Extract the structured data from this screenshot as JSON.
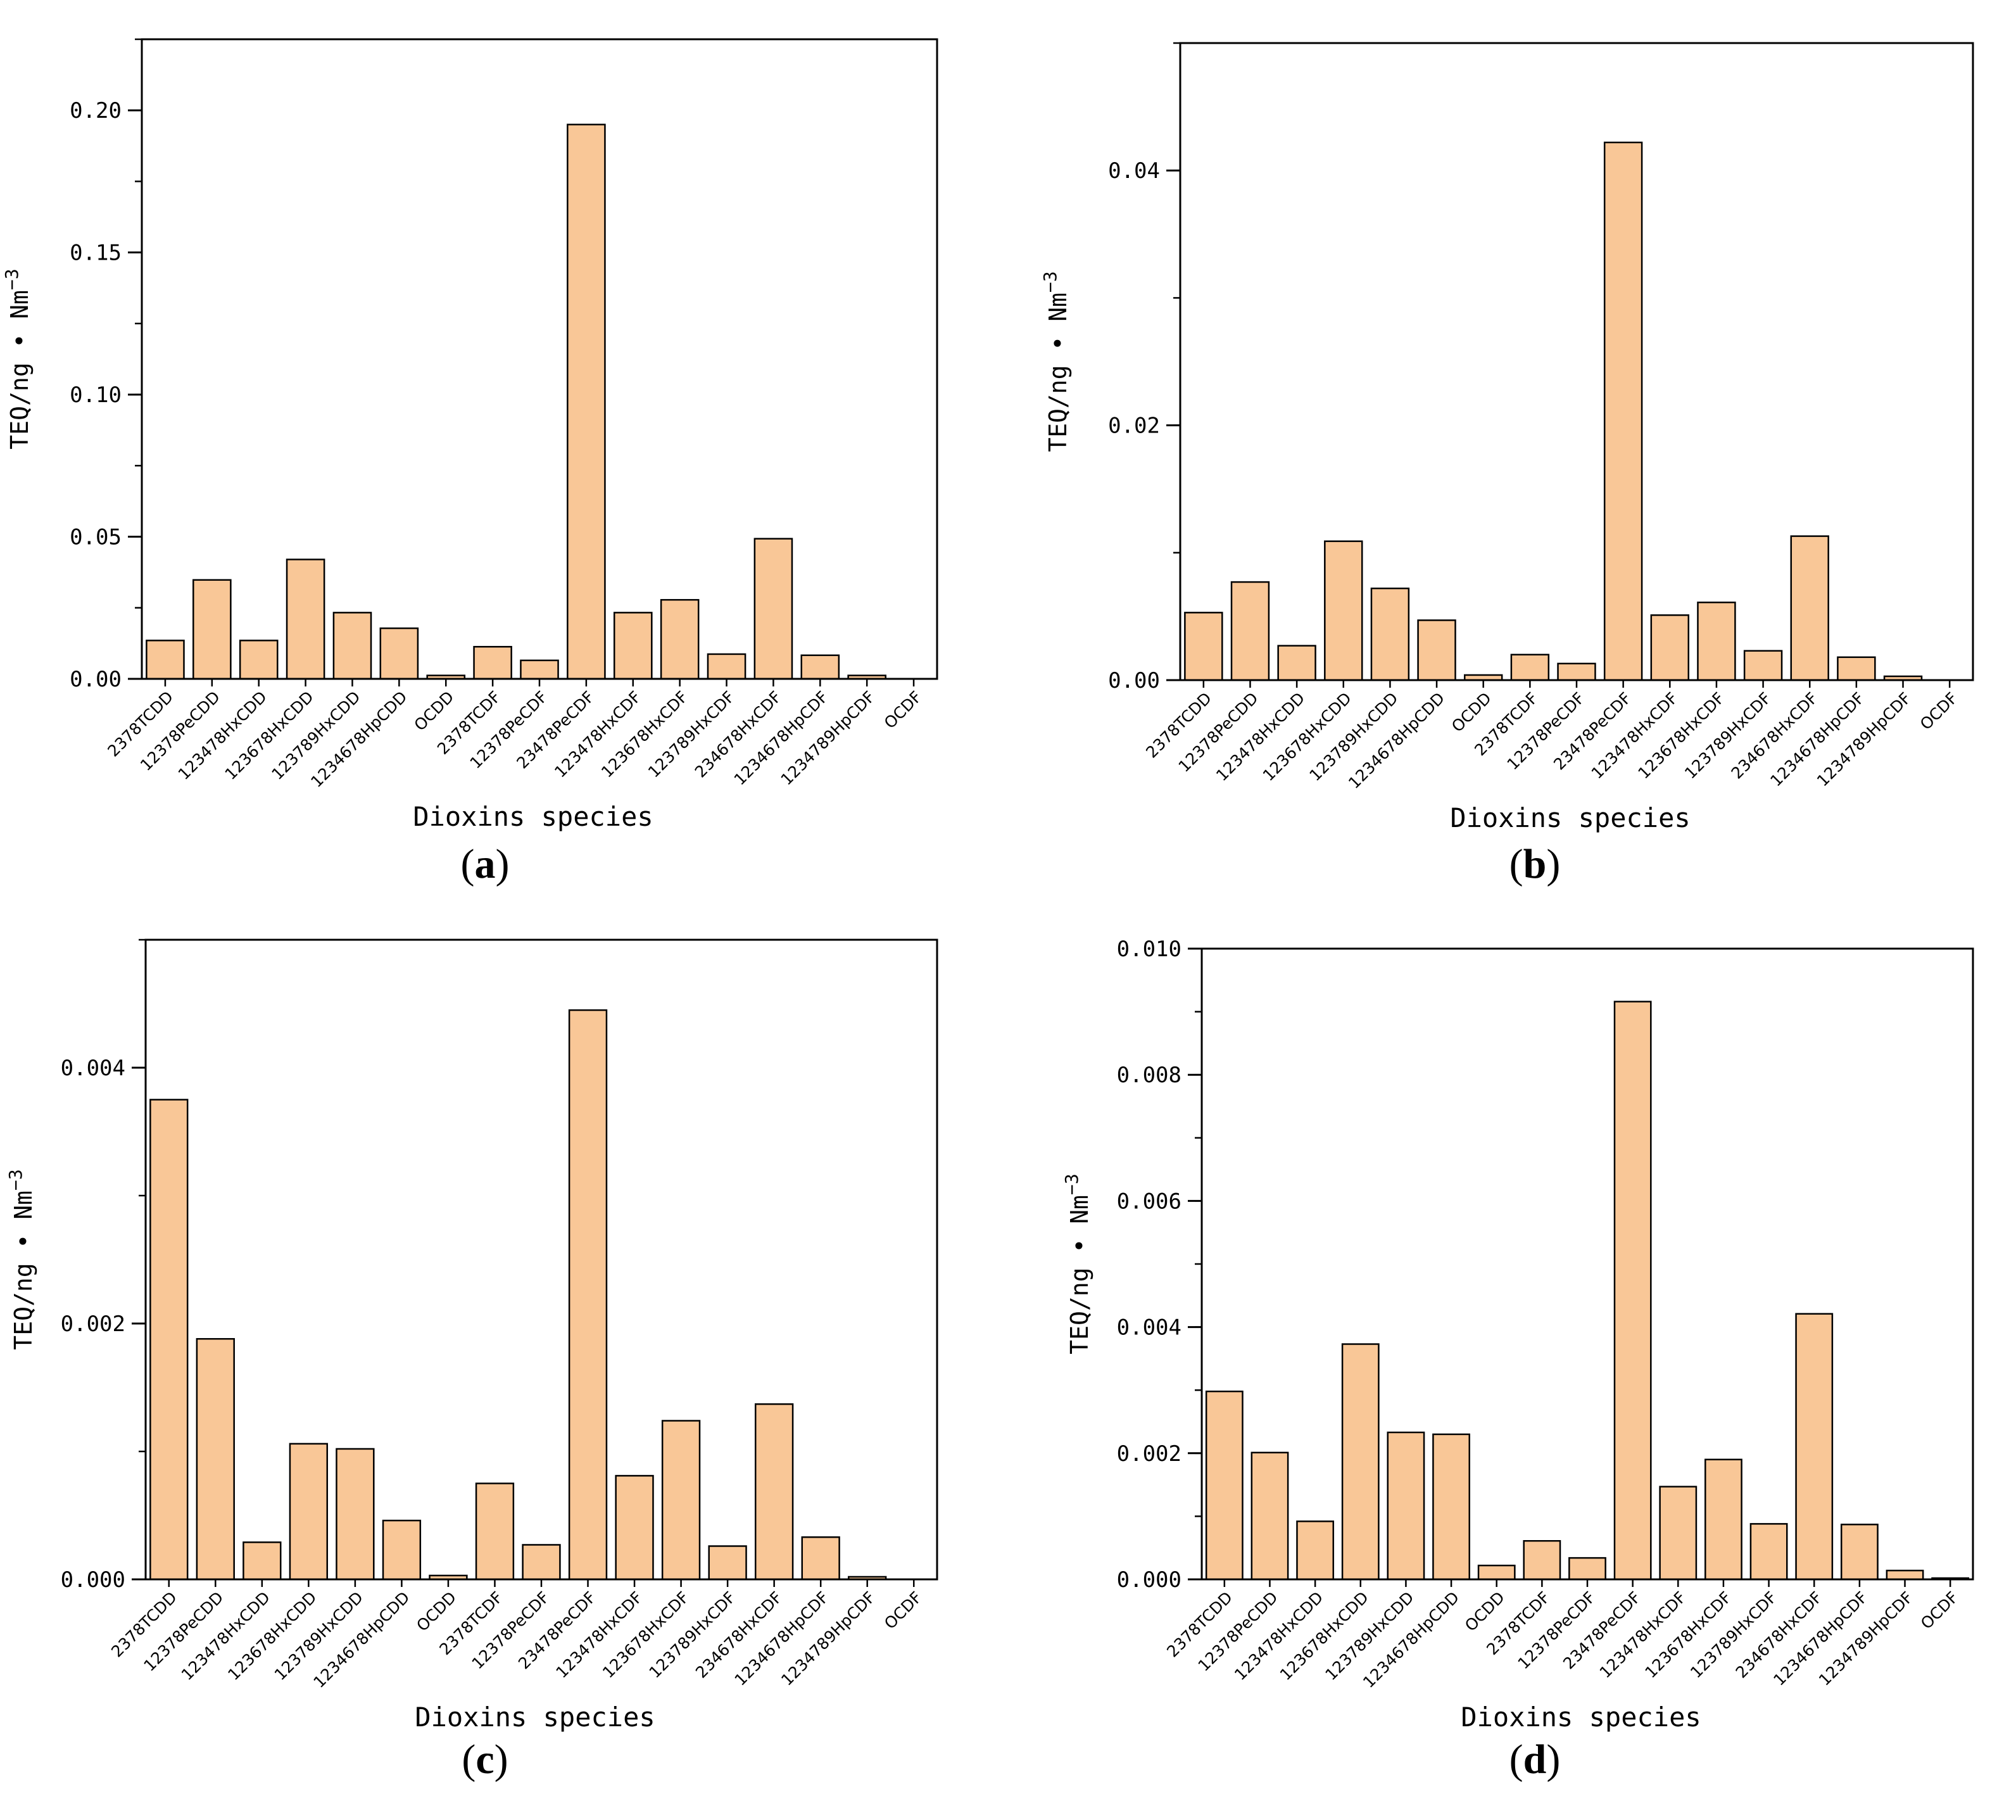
{
  "styles": {
    "bar_fill": "#f9c797",
    "bar_stroke": "#000000",
    "axis_color": "#000000"
  },
  "chart_data": [
    {
      "type": "bar",
      "panel_letter": "a",
      "title": "",
      "xlabel": "Dioxins species",
      "ylabel_text": "TEQ/ng • Nm",
      "ylabel_exp": "−3",
      "ylim": [
        0,
        0.225
      ],
      "ticks": [
        0.0,
        0.05,
        0.1,
        0.15,
        0.2
      ],
      "tick_labels": [
        "0.00",
        "0.05",
        "0.10",
        "0.15",
        "0.20"
      ],
      "minor_step": 0.025,
      "categories": [
        "2378TCDD",
        "12378PeCDD",
        "123478HxCDD",
        "123678HxCDD",
        "123789HxCDD",
        "1234678HpCDD",
        "OCDD",
        "2378TCDF",
        "12378PeCDF",
        "23478PeCDF",
        "123478HxCDF",
        "123678HxCDF",
        "123789HxCDF",
        "234678HxCDF",
        "1234678HpCDF",
        "1234789HpCDF",
        "OCDF"
      ],
      "values": [
        0.0135,
        0.0348,
        0.0135,
        0.042,
        0.0233,
        0.0178,
        0.0012,
        0.0113,
        0.0065,
        0.195,
        0.0233,
        0.0278,
        0.0087,
        0.0493,
        0.0083,
        0.0012,
        0.0
      ]
    },
    {
      "type": "bar",
      "panel_letter": "b",
      "title": "",
      "xlabel": "Dioxins species",
      "ylabel_text": "TEQ/ng • Nm",
      "ylabel_exp": "−3",
      "ylim": [
        0,
        0.05
      ],
      "ticks": [
        0.0,
        0.02,
        0.04
      ],
      "tick_labels": [
        "0.00",
        "0.02",
        "0.04"
      ],
      "minor_step": 0.01,
      "categories": [
        "2378TCDD",
        "12378PeCDD",
        "123478HxCDD",
        "123678HxCDD",
        "123789HxCDD",
        "1234678HpCDD",
        "OCDD",
        "2378TCDF",
        "12378PeCDF",
        "23478PeCDF",
        "123478HxCDF",
        "123678HxCDF",
        "123789HxCDF",
        "234678HxCDF",
        "1234678HpCDF",
        "1234789HpCDF",
        "OCDF"
      ],
      "values": [
        0.0053,
        0.0077,
        0.0027,
        0.0109,
        0.0072,
        0.0047,
        0.0004,
        0.002,
        0.0013,
        0.0422,
        0.0051,
        0.0061,
        0.0023,
        0.0113,
        0.0018,
        0.0003,
        0.0
      ]
    },
    {
      "type": "bar",
      "panel_letter": "c",
      "title": "",
      "xlabel": "Dioxins species",
      "ylabel_text": "TEQ/ng • Nm",
      "ylabel_exp": "−3",
      "ylim": [
        0,
        0.005
      ],
      "ticks": [
        0.0,
        0.002,
        0.004
      ],
      "tick_labels": [
        "0.000",
        "0.002",
        "0.004"
      ],
      "minor_step": 0.001,
      "categories": [
        "2378TCDD",
        "12378PeCDD",
        "123478HxCDD",
        "123678HxCDD",
        "123789HxCDD",
        "1234678HpCDD",
        "OCDD",
        "2378TCDF",
        "12378PeCDF",
        "23478PeCDF",
        "123478HxCDF",
        "123678HxCDF",
        "123789HxCDF",
        "234678HxCDF",
        "1234678HpCDF",
        "1234789HpCDF",
        "OCDF"
      ],
      "values": [
        0.00375,
        0.00188,
        0.00029,
        0.00106,
        0.00102,
        0.00046,
        3e-05,
        0.00075,
        0.00027,
        0.00445,
        0.00081,
        0.00124,
        0.00026,
        0.00137,
        0.00033,
        2e-05,
        0.0
      ]
    },
    {
      "type": "bar",
      "panel_letter": "d",
      "title": "",
      "xlabel": "Dioxins species",
      "ylabel_text": "TEQ/ng • Nm",
      "ylabel_exp": "−3",
      "ylim": [
        0,
        0.01
      ],
      "ticks": [
        0.0,
        0.002,
        0.004,
        0.006,
        0.008,
        0.01
      ],
      "tick_labels": [
        "0.000",
        "0.002",
        "0.004",
        "0.006",
        "0.008",
        "0.010"
      ],
      "minor_step": 0.001,
      "categories": [
        "2378TCDD",
        "12378PeCDD",
        "123478HxCDD",
        "123678HxCDD",
        "123789HxCDD",
        "1234678HpCDD",
        "OCDD",
        "2378TCDF",
        "12378PeCDF",
        "23478PeCDF",
        "123478HxCDF",
        "123678HxCDF",
        "123789HxCDF",
        "234678HxCDF",
        "1234678HpCDF",
        "1234789HpCDF",
        "OCDF"
      ],
      "values": [
        0.00298,
        0.00201,
        0.00092,
        0.00373,
        0.00233,
        0.0023,
        0.00022,
        0.00061,
        0.00034,
        0.00916,
        0.00147,
        0.0019,
        0.00088,
        0.00421,
        0.00087,
        0.00014,
        2e-05
      ]
    }
  ]
}
